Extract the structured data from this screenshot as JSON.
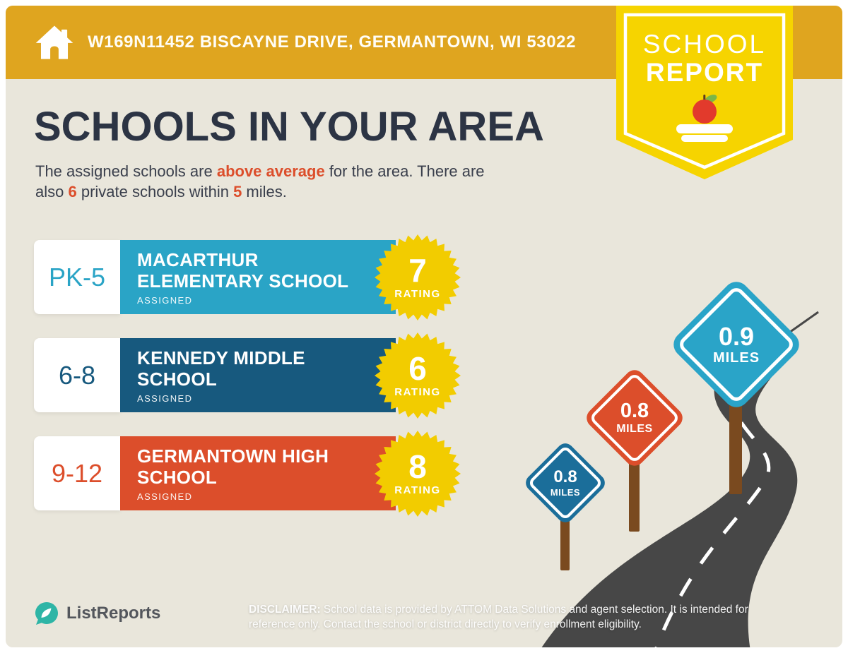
{
  "header": {
    "address": "W169N11452 BISCAYNE DRIVE, GERMANTOWN, WI 53022"
  },
  "ribbon": {
    "line1": "SCHOOL",
    "line2": "REPORT"
  },
  "intro": {
    "title": "SCHOOLS IN YOUR AREA",
    "line1_pre": "The assigned schools are ",
    "line1_highlight": "above average",
    "line1_post": " for the area. There are",
    "line2_pre": "also ",
    "line2_num1": "6",
    "line2_mid": " private schools within ",
    "line2_num2": "5",
    "line2_post": " miles."
  },
  "schools": [
    {
      "grades": "PK-5",
      "name_lines": [
        "MACARTHUR",
        "ELEMENTARY SCHOOL"
      ],
      "status": "ASSIGNED",
      "rating": "7",
      "rating_label": "RATING",
      "color": "#2aa4c6"
    },
    {
      "grades": "6-8",
      "name_lines": [
        "KENNEDY MIDDLE",
        "SCHOOL"
      ],
      "status": "ASSIGNED",
      "rating": "6",
      "rating_label": "RATING",
      "color": "#17597e"
    },
    {
      "grades": "9-12",
      "name_lines": [
        "GERMANTOWN HIGH",
        "SCHOOL"
      ],
      "status": "ASSIGNED",
      "rating": "8",
      "rating_label": "RATING",
      "color": "#dc4e2b"
    }
  ],
  "signs": [
    {
      "distance": "0.8",
      "unit": "MILES",
      "color": "#1b6e9a"
    },
    {
      "distance": "0.8",
      "unit": "MILES",
      "color": "#dc4e2b"
    },
    {
      "distance": "0.9",
      "unit": "MILES",
      "color": "#2aa4c8"
    }
  ],
  "footer": {
    "brand": "ListReports",
    "disclaimer_label": "DISCLAIMER:",
    "disclaimer_text": " School data is provided by ATTOM Data Solutions and agent selection. It is intended for reference only. Contact the school or district directly to verify enrollment eligibility."
  },
  "colors": {
    "header_gold": "#dfa51f",
    "ribbon_yellow": "#f6d400",
    "background_beige": "#e9e6db",
    "title_navy": "#2c3444",
    "accent_orange": "#dc4e2b",
    "badge_yellow": "#f2cc00",
    "road_gray": "#474747",
    "post_brown": "#7a4a1f",
    "logo_teal": "#2eb5a6"
  }
}
